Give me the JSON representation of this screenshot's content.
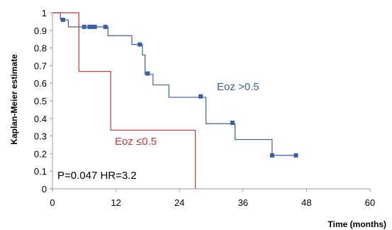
{
  "chart_data": {
    "type": "line",
    "subtype": "kaplan-meier step",
    "ylabel": "Kaplan-Meier estimate",
    "xlabel": "Time (months)",
    "xlim": [
      0,
      60
    ],
    "ylim": [
      0,
      1
    ],
    "x_ticks": [
      "0",
      "12",
      "24",
      "36",
      "48",
      "60"
    ],
    "x_tick_values": [
      0,
      12,
      24,
      36,
      48,
      60
    ],
    "y_ticks": [
      "0",
      "0.1",
      "0.2",
      "0.3",
      "0.4",
      "0.5",
      "0.6",
      "0.7",
      "0.8",
      "0.9",
      "1"
    ],
    "y_tick_values": [
      0,
      0.1,
      0.2,
      0.3,
      0.4,
      0.5,
      0.6,
      0.7,
      0.8,
      0.9,
      1
    ],
    "grid": false,
    "legend": "none (series labeled inline)",
    "annotation": "P=0.047 HR=3.2",
    "series": [
      {
        "name": "Eoz >0.5",
        "color": "#3a5ea8",
        "steps": [
          [
            0,
            1.0
          ],
          [
            1.5,
            0.96
          ],
          [
            3,
            0.92
          ],
          [
            10.5,
            0.87
          ],
          [
            15,
            0.82
          ],
          [
            17,
            0.76
          ],
          [
            17.5,
            0.65
          ],
          [
            19,
            0.59
          ],
          [
            22,
            0.52
          ],
          [
            29,
            0.37
          ],
          [
            34.5,
            0.28
          ],
          [
            41.5,
            0.19
          ],
          [
            46,
            0.19
          ]
        ],
        "censored": [
          [
            2,
            0.96
          ],
          [
            6,
            0.92
          ],
          [
            7,
            0.92
          ],
          [
            7.5,
            0.92
          ],
          [
            8,
            0.92
          ],
          [
            10,
            0.92
          ],
          [
            16.5,
            0.82
          ],
          [
            18,
            0.655
          ],
          [
            28,
            0.525
          ],
          [
            34,
            0.375
          ],
          [
            41.5,
            0.19
          ],
          [
            46,
            0.19
          ]
        ]
      },
      {
        "name": "Eoz ≤0.5",
        "color": "#e03030",
        "steps": [
          [
            0,
            1.0
          ],
          [
            5,
            0.667
          ],
          [
            11,
            0.333
          ],
          [
            27,
            0.0
          ]
        ],
        "censored": []
      }
    ]
  }
}
